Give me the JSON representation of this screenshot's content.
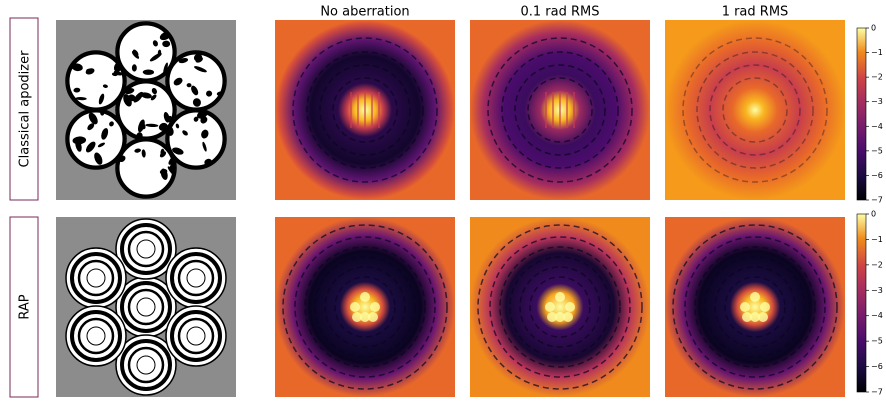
{
  "columns": [
    "No aberration",
    "0.1 rad RMS",
    "1 rad RMS"
  ],
  "rows": [
    "Classical apodizer",
    "RAP"
  ],
  "colorbars": [
    {
      "ylim": [
        -7,
        0
      ],
      "yticks": [
        0,
        {
          "value": -1,
          "label": "−1"
        },
        {
          "value": -2,
          "label": "−2"
        },
        {
          "value": -3,
          "label": "−3"
        },
        {
          "value": -4,
          "label": "−4"
        },
        {
          "value": -5,
          "label": "−5"
        },
        {
          "value": -6,
          "label": "−6"
        },
        {
          "value": -7,
          "label": "−7"
        }
      ]
    },
    {
      "ylim": [
        -7,
        0
      ],
      "yticks": [
        0,
        {
          "value": -1,
          "label": "−1"
        },
        {
          "value": -2,
          "label": "−2"
        },
        {
          "value": -3,
          "label": "−3"
        },
        {
          "value": -4,
          "label": "−4"
        },
        {
          "value": -5,
          "label": "−5"
        },
        {
          "value": -6,
          "label": "−6"
        },
        {
          "value": -7,
          "label": "−7"
        }
      ]
    }
  ]
}
